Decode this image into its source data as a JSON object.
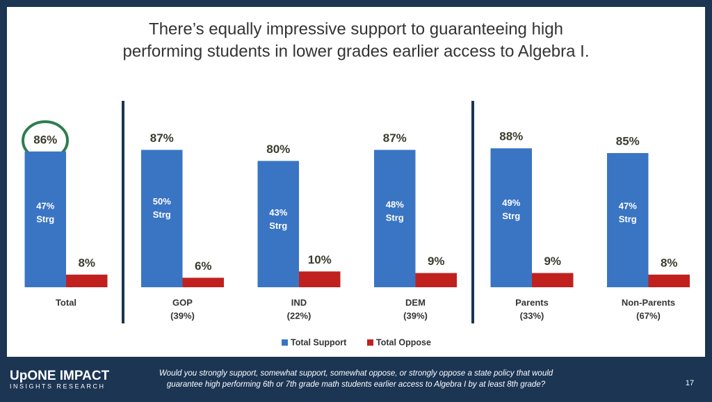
{
  "chart_data": {
    "type": "bar",
    "title": [
      "There’s equally impressive support to guaranteeing high",
      "performing students in lower grades earlier access to Algebra I."
    ],
    "categories": [
      "Total",
      "GOP",
      "IND",
      "DEM",
      "Parents",
      "Non-Parents"
    ],
    "category_sublabels": [
      null,
      "(39%)",
      "(22%)",
      "(39%)",
      "(33%)",
      "(67%)"
    ],
    "series": [
      {
        "name": "Total Support",
        "color": "#3a75c4",
        "values": [
          86,
          87,
          80,
          87,
          88,
          85
        ],
        "value_labels": [
          "86%",
          "87%",
          "80%",
          "87%",
          "88%",
          "85%"
        ]
      },
      {
        "name": "Total Oppose",
        "color": "#c0211f",
        "values": [
          8,
          6,
          10,
          9,
          9,
          8
        ],
        "value_labels": [
          "8%",
          "6%",
          "10%",
          "9%",
          "9%",
          "8%"
        ]
      }
    ],
    "strong": {
      "label": "Strg",
      "values": [
        47,
        50,
        43,
        48,
        49,
        47
      ],
      "value_labels": [
        "47%",
        "50%",
        "43%",
        "48%",
        "49%",
        "47%"
      ]
    },
    "ylim": [
      0,
      100
    ],
    "legend": "bottom"
  },
  "footer": {
    "brand": "UpONE IMPACT",
    "brand_sub": "INSIGHTS RESEARCH",
    "question": [
      "Would you strongly support, somewhat support, somewhat oppose, or strongly oppose a state policy that would",
      "guarantee high performing 6th or 7th grade math students earlier access to Algebra I by at least 8th grade?"
    ],
    "page": 17
  }
}
